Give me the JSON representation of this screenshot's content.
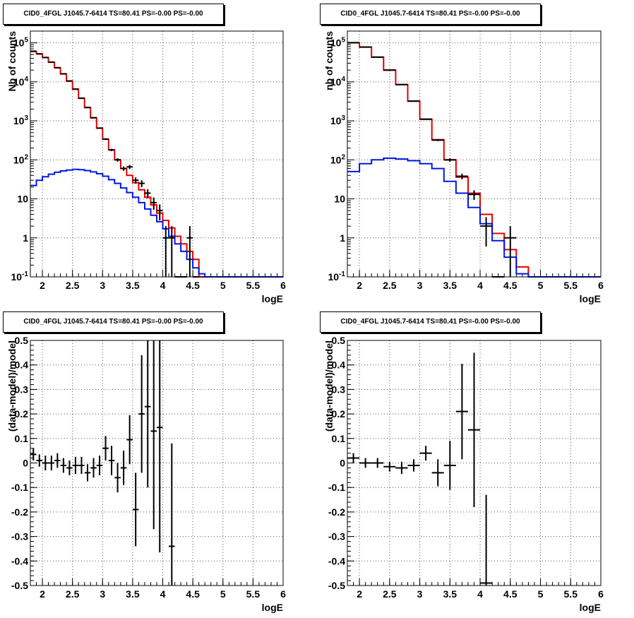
{
  "panels": [
    {
      "title": "CID0_4FGL J1045.7-6414 TS=80.41 PS=-0.00 PS=-0.00"
    },
    {
      "title": "CID0_4FGL J1045.7-6414 TS=80.41 PS=-0.00 PS=-0.00"
    },
    {
      "title": "CID0_4FGL J1045.7-6414 TS=80.41 PS=-0.00 PS=-0.00"
    },
    {
      "title": "CID0_4FGL J1045.7-6414 TS=80.41 PS=-0.00 PS=-0.00"
    }
  ],
  "colors": {
    "data": "#000000",
    "total_model": "#e00000",
    "source_model": "#0018e0",
    "grid": "#555555"
  },
  "chart_data": [
    {
      "type": "line",
      "title": "CID0_4FGL J1045.7-6414 TS=80.41 PS=-0.00 PS=-0.00",
      "xlabel": "logE",
      "ylabel": "Nb of counts",
      "xlim": [
        1.8,
        6
      ],
      "ylim": [
        0.1,
        200000
      ],
      "yscale": "log",
      "grid": true,
      "xticks": [
        "2",
        "2.5",
        "3",
        "3.5",
        "4",
        "4.5",
        "5",
        "5.5",
        "6"
      ],
      "yticks": [
        "10^-1",
        "1",
        "10",
        "10^2",
        "10^3",
        "10^4",
        "10^5"
      ],
      "bin_width": 0.1,
      "series": [
        {
          "role": "total_model",
          "x": [
            1.8,
            1.9,
            2.0,
            2.1,
            2.2,
            2.3,
            2.4,
            2.5,
            2.6,
            2.7,
            2.8,
            2.9,
            3.0,
            3.1,
            3.2,
            3.3,
            3.4,
            3.5,
            3.6,
            3.7,
            3.8,
            3.9,
            4.0,
            4.1,
            4.2,
            4.3,
            4.4,
            4.5,
            4.6,
            4.7,
            4.8,
            4.9,
            5.0,
            5.1,
            5.2,
            5.3,
            5.4,
            5.5,
            5.6,
            5.7,
            5.8,
            5.9
          ],
          "y": [
            60000,
            52000,
            42000,
            32000,
            23000,
            16000,
            10500,
            6500,
            3800,
            2200,
            1200,
            650,
            340,
            180,
            100,
            60,
            40,
            26,
            17,
            11,
            7,
            4.3,
            2.8,
            1.8,
            1.1,
            0.7,
            0.45,
            0.28,
            0.1,
            0.1,
            0.1,
            0.1,
            0.1,
            0.1,
            0.1,
            0.1,
            0.1,
            0.1,
            0.1,
            0.1,
            0.1,
            0.1
          ]
        },
        {
          "role": "source_model",
          "x": [
            1.8,
            1.9,
            2.0,
            2.1,
            2.2,
            2.3,
            2.4,
            2.5,
            2.6,
            2.7,
            2.8,
            2.9,
            3.0,
            3.1,
            3.2,
            3.3,
            3.4,
            3.5,
            3.6,
            3.7,
            3.8,
            3.9,
            4.0,
            4.1,
            4.2,
            4.3,
            4.4,
            4.5,
            4.6,
            4.7,
            4.8,
            4.9,
            5.0,
            5.1,
            5.2,
            5.3,
            5.4,
            5.5,
            5.6,
            5.7,
            5.8,
            5.9
          ],
          "y": [
            22,
            30,
            37,
            43,
            48,
            52,
            55,
            57,
            56,
            53,
            49,
            44,
            38,
            31,
            25,
            19,
            14.5,
            11,
            8,
            5.5,
            3.8,
            2.6,
            1.7,
            1.1,
            0.7,
            0.45,
            0.28,
            0.17,
            0.12,
            0.1,
            0.1,
            0.1,
            0.1,
            0.1,
            0.1,
            0.1,
            0.1,
            0.1,
            0.1,
            0.1,
            0.1,
            0.1
          ]
        },
        {
          "role": "data",
          "x": [
            1.85,
            1.95,
            2.05,
            2.15,
            2.25,
            2.35,
            2.45,
            2.55,
            2.65,
            2.75,
            2.85,
            2.95,
            3.05,
            3.15,
            3.25,
            3.35,
            3.45,
            3.55,
            3.65,
            3.75,
            3.85,
            3.95,
            4.05,
            4.15,
            4.25,
            4.35,
            4.45,
            4.55
          ],
          "y": [
            61000,
            52000,
            42000,
            32000,
            23000,
            16000,
            10500,
            6500,
            3800,
            2200,
            1200,
            650,
            340,
            180,
            100,
            60,
            66,
            30,
            25,
            14,
            8,
            5,
            1,
            1,
            0.1,
            0.1,
            1,
            0.1
          ],
          "err": [
            247,
            228,
            205,
            179,
            152,
            126,
            102,
            81,
            62,
            47,
            35,
            25,
            18,
            13,
            10,
            7.7,
            8.1,
            5.5,
            5,
            3.7,
            2.8,
            2.2,
            1,
            1,
            0,
            0,
            1,
            0
          ]
        }
      ]
    },
    {
      "type": "line",
      "title": "CID0_4FGL J1045.7-6414 TS=80.41 PS=-0.00 PS=-0.00",
      "xlabel": "logE",
      "ylabel": "nb of counts",
      "xlim": [
        1.8,
        6
      ],
      "ylim": [
        0.1,
        200000
      ],
      "yscale": "log",
      "grid": true,
      "xticks": [
        "2",
        "2.5",
        "3",
        "3.5",
        "4",
        "4.5",
        "5",
        "5.5",
        "6"
      ],
      "yticks": [
        "10^-1",
        "1",
        "10",
        "10^2",
        "10^3",
        "10^4",
        "10^5"
      ],
      "bin_width": 0.2,
      "series": [
        {
          "role": "total_model",
          "x": [
            1.8,
            2.0,
            2.2,
            2.4,
            2.6,
            2.8,
            3.0,
            3.2,
            3.4,
            3.6,
            3.8,
            4.0,
            4.2,
            4.4,
            4.6,
            4.8,
            5.0,
            5.2,
            5.4,
            5.6,
            5.8
          ],
          "y": [
            100000,
            78000,
            43000,
            20000,
            8500,
            3200,
            1100,
            330,
            100,
            36,
            14,
            4,
            1.3,
            0.5,
            0.18,
            0.1,
            0.1,
            0.1,
            0.1,
            0.1,
            0.1
          ]
        },
        {
          "role": "source_model",
          "x": [
            1.8,
            2.0,
            2.2,
            2.4,
            2.6,
            2.8,
            3.0,
            3.2,
            3.4,
            3.6,
            3.8,
            4.0,
            4.2,
            4.4,
            4.6,
            4.8,
            5.0,
            5.2,
            5.4,
            5.6,
            5.8
          ],
          "y": [
            50,
            80,
            100,
            110,
            105,
            95,
            80,
            60,
            28,
            14,
            6,
            2.3,
            0.85,
            0.32,
            0.12,
            0.1,
            0.1,
            0.1,
            0.1,
            0.1,
            0.1
          ]
        },
        {
          "role": "data",
          "x": [
            1.9,
            2.1,
            2.3,
            2.5,
            2.7,
            2.9,
            3.1,
            3.3,
            3.5,
            3.7,
            3.9,
            4.1,
            4.3,
            4.5
          ],
          "y": [
            101000,
            78000,
            43000,
            20000,
            8500,
            3200,
            1100,
            320,
            100,
            38,
            13,
            2,
            0.1,
            1
          ],
          "err": [
            318,
            279,
            207,
            141,
            92,
            57,
            33,
            18,
            10,
            6.2,
            3.6,
            1.4,
            0,
            1
          ]
        }
      ]
    },
    {
      "type": "scatter",
      "title": "CID0_4FGL J1045.7-6414 TS=80.41 PS=-0.00 PS=-0.00",
      "xlabel": "logE",
      "ylabel": "(data-model)/model",
      "xlim": [
        1.8,
        6
      ],
      "ylim": [
        -0.5,
        0.5
      ],
      "grid": true,
      "xticks": [
        "2",
        "2.5",
        "3",
        "3.5",
        "4",
        "4.5",
        "5",
        "5.5",
        "6"
      ],
      "yticks": [
        "-0.5",
        "-0.4",
        "-0.3",
        "-0.2",
        "-0.1",
        "0",
        "0.1",
        "0.2",
        "0.3",
        "0.4",
        "0.5"
      ],
      "bin_width": 0.1,
      "series": [
        {
          "role": "data",
          "x": [
            1.85,
            1.95,
            2.05,
            2.15,
            2.25,
            2.35,
            2.45,
            2.55,
            2.65,
            2.75,
            2.85,
            2.95,
            3.05,
            3.15,
            3.25,
            3.35,
            3.45,
            3.55,
            3.65,
            3.75,
            3.85,
            3.95,
            4.15
          ],
          "y": [
            0.035,
            0.01,
            0.0,
            0.0,
            0.01,
            -0.01,
            -0.02,
            -0.01,
            -0.01,
            -0.04,
            -0.02,
            -0.01,
            0.06,
            0.01,
            -0.06,
            -0.02,
            0.095,
            -0.19,
            0.2,
            0.23,
            0.13,
            0.145,
            -0.34
          ],
          "err": [
            0.025,
            0.025,
            0.03,
            0.03,
            0.03,
            0.03,
            0.03,
            0.035,
            0.035,
            0.035,
            0.04,
            0.04,
            0.05,
            0.06,
            0.06,
            0.07,
            0.1,
            0.15,
            0.24,
            0.33,
            0.4,
            0.51,
            0.42
          ]
        }
      ]
    },
    {
      "type": "scatter",
      "title": "CID0_4FGL J1045.7-6414 TS=80.41 PS=-0.00 PS=-0.00",
      "xlabel": "logE",
      "ylabel": "(data-model)/model",
      "xlim": [
        1.8,
        6
      ],
      "ylim": [
        -0.5,
        0.5
      ],
      "grid": true,
      "xticks": [
        "2",
        "2.5",
        "3",
        "3.5",
        "4",
        "4.5",
        "5",
        "5.5",
        "6"
      ],
      "yticks": [
        "-0.5",
        "-0.4",
        "-0.3",
        "-0.2",
        "-0.1",
        "0",
        "0.1",
        "0.2",
        "0.3",
        "0.4",
        "0.5"
      ],
      "bin_width": 0.2,
      "series": [
        {
          "role": "data",
          "x": [
            1.9,
            2.1,
            2.3,
            2.5,
            2.7,
            2.9,
            3.1,
            3.3,
            3.5,
            3.7,
            3.9,
            4.1
          ],
          "y": [
            0.02,
            0.0,
            0.0,
            -0.015,
            -0.02,
            -0.01,
            0.04,
            -0.04,
            -0.01,
            0.21,
            0.135,
            -0.49
          ],
          "err": [
            0.02,
            0.02,
            0.02,
            0.02,
            0.025,
            0.025,
            0.03,
            0.055,
            0.1,
            0.195,
            0.315,
            0.36
          ]
        }
      ]
    }
  ]
}
